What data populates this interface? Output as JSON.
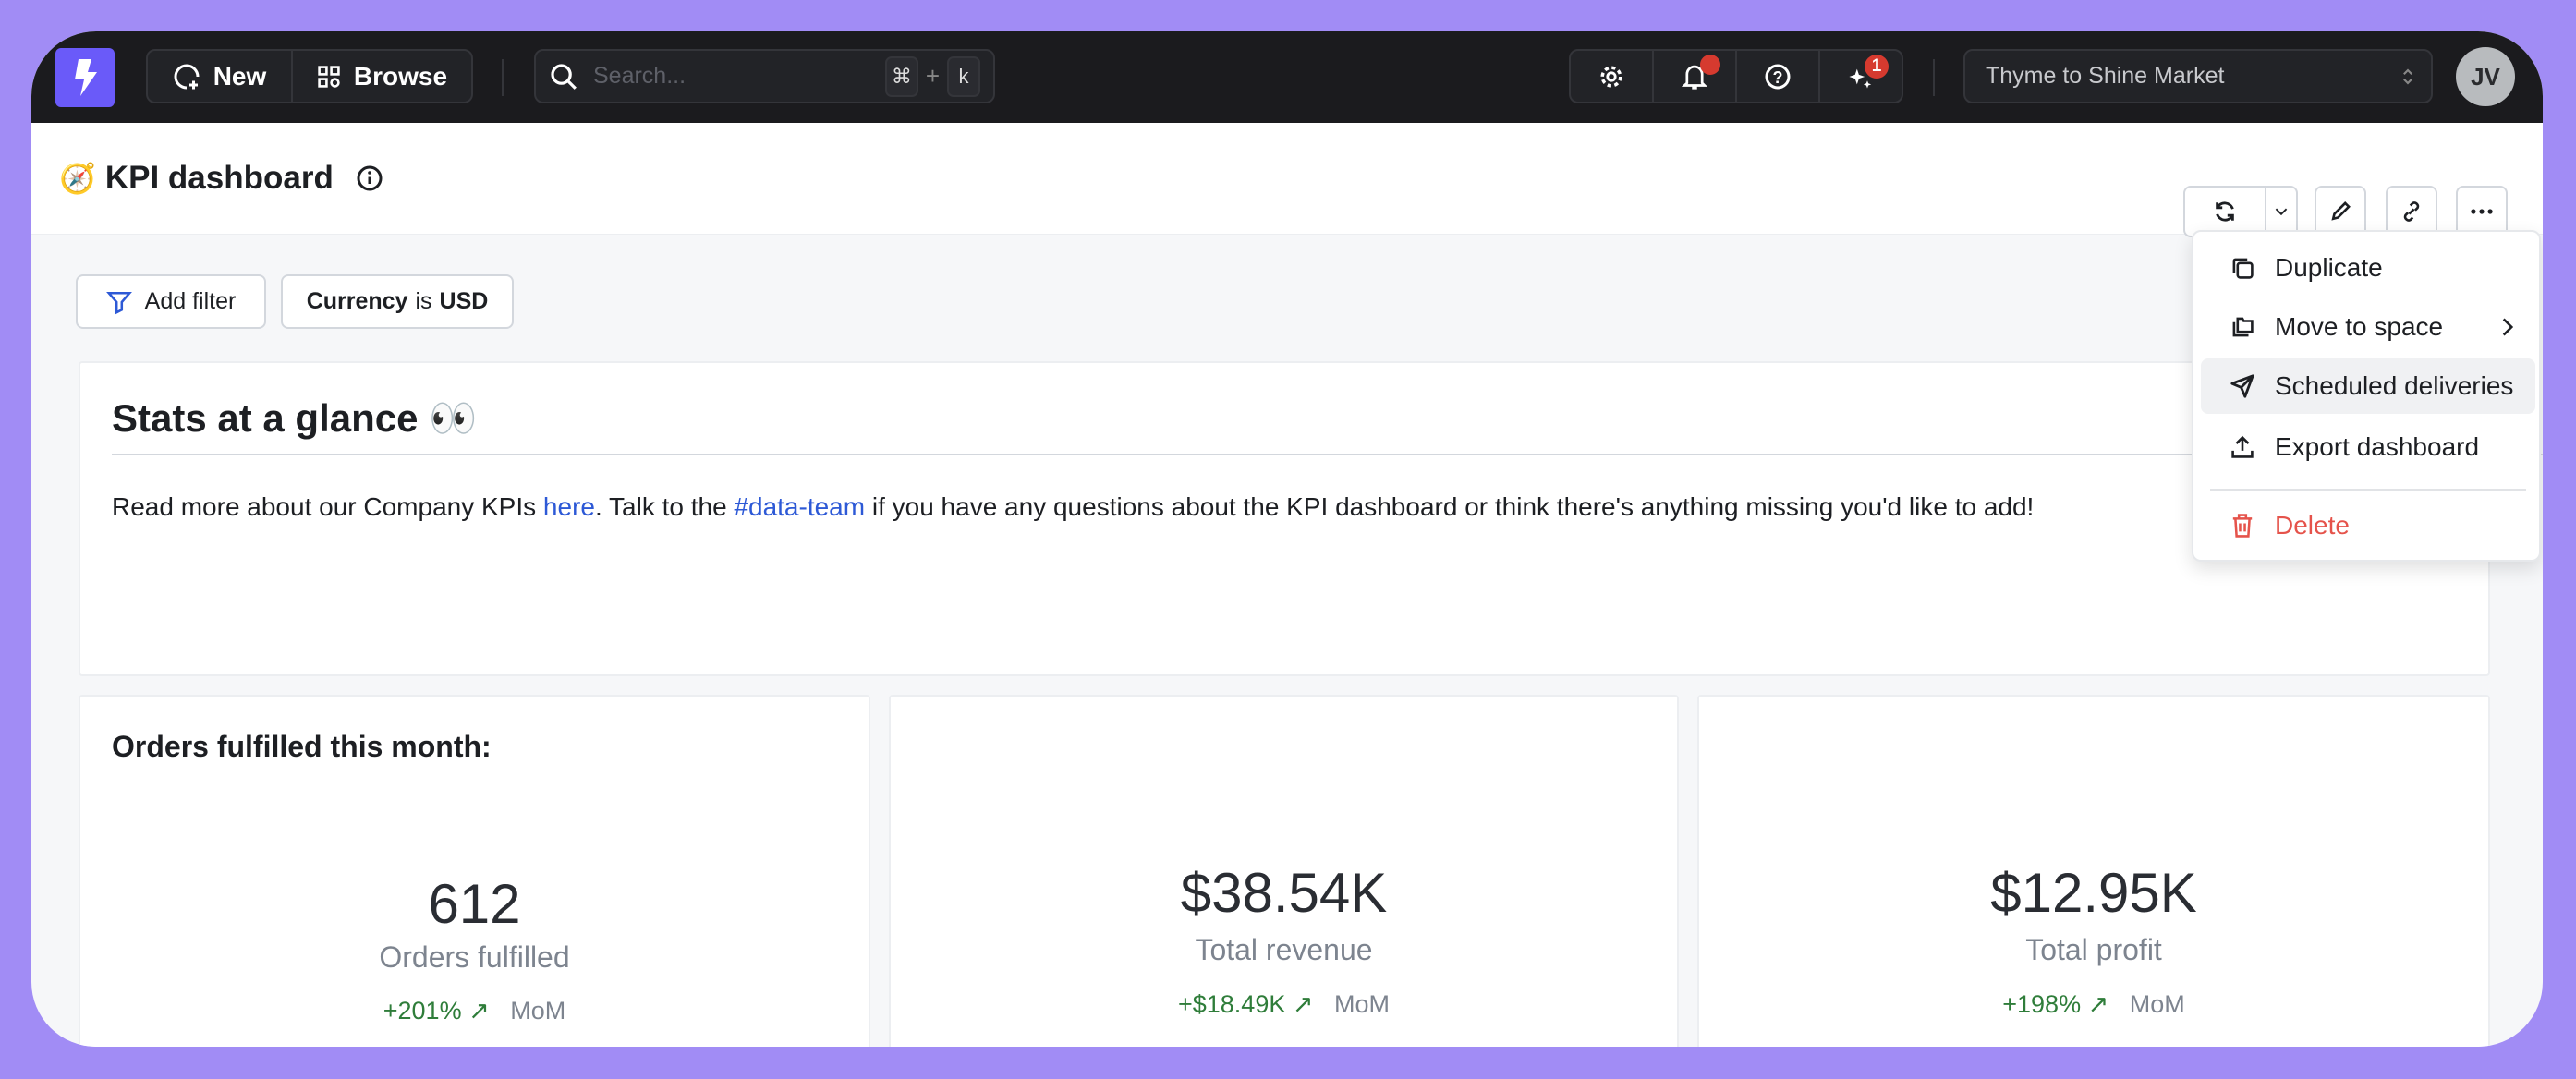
{
  "topbar": {
    "new_label": "New",
    "browse_label": "Browse",
    "search_placeholder": "Search...",
    "shortcut_mod": "⌘",
    "shortcut_plus": "+",
    "shortcut_key": "k",
    "ai_badge": "1",
    "workspace": "Thyme to Shine Market",
    "avatar_initials": "JV"
  },
  "header": {
    "emoji": "🧭",
    "title": "KPI dashboard"
  },
  "filters": {
    "add_filter": "Add filter",
    "currency_key": "Currency",
    "currency_op": "is",
    "currency_value": "USD"
  },
  "text_card": {
    "heading": "Stats at a glance 👀",
    "p1": "Read more about our Company KPIs ",
    "link1": "here",
    "p2": ". Talk to the ",
    "link2": "#data-team",
    "p3": " if you have any questions about the KPI dashboard or think there's anything missing you'd like to add!"
  },
  "kpis": [
    {
      "title": "Orders fulfilled this month:",
      "value": "612",
      "label": "Orders fulfilled",
      "change": "+201%",
      "period": "MoM"
    },
    {
      "title": "",
      "value": "$38.54K",
      "label": "Total revenue",
      "change": "+$18.49K",
      "period": "MoM"
    },
    {
      "title": "",
      "value": "$12.95K",
      "label": "Total profit",
      "change": "+198%",
      "period": "MoM"
    }
  ],
  "menu": {
    "items": [
      {
        "label": "Duplicate",
        "icon": "copy-icon"
      },
      {
        "label": "Move to space",
        "icon": "folder-icon"
      },
      {
        "label": "Scheduled deliveries",
        "icon": "send-icon",
        "highlighted": true
      },
      {
        "label": "Export dashboard",
        "icon": "upload-icon"
      },
      {
        "label": "Delete",
        "icon": "trash-icon",
        "danger": true
      }
    ]
  },
  "colors": {
    "brand": "#6a5af9",
    "link": "#2d59d6",
    "positive": "#2f7d3a",
    "danger": "#e5534b",
    "badge": "#d63a2f"
  }
}
